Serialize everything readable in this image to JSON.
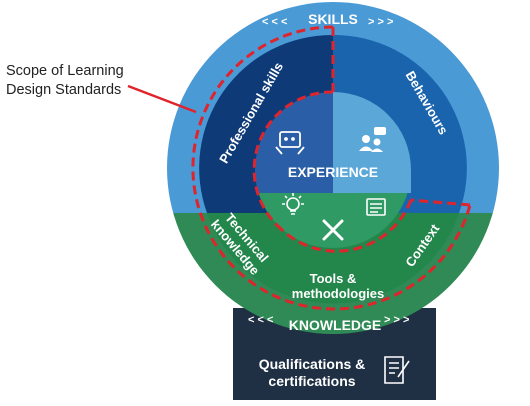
{
  "annotation": {
    "scope_line1": "Scope of Learning",
    "scope_line2": "Design Standards"
  },
  "outer_ring": {
    "top_label": "SKILLS",
    "top_arrows_left": "< < <",
    "top_arrows_right": "> > >",
    "bottom_label": "KNOWLEDGE",
    "bottom_arrows_left": "< < <",
    "bottom_arrows_right": "> > >"
  },
  "segments": {
    "professional_skills": "Professional skills",
    "behaviours": "Behaviours",
    "technical_line1": "Technical",
    "technical_line2": "knowledge",
    "tools_line1": "Tools &",
    "tools_line2": "methodologies",
    "context": "Context"
  },
  "center": {
    "label": "EXPERIENCE"
  },
  "footer": {
    "line1": "Qualifications &",
    "line2": "certifications"
  },
  "icons": [
    "tablet-hands-icon",
    "people-chat-icon",
    "lightbulb-icon",
    "tools-icon",
    "document-icon",
    "certificate-scroll-icon"
  ],
  "colors": {
    "skills_ring": "#4a9ad6",
    "skills_dark": "#0e3a78",
    "skills_mid": "#1a63ad",
    "knowledge_ring": "#2f8a56",
    "knowledge_segment": "#23864b",
    "center_blue": "#5aa7d8",
    "center_green": "#2f9a63",
    "footer_box": "#1f2f44",
    "scope_dash": "#e0242c"
  }
}
